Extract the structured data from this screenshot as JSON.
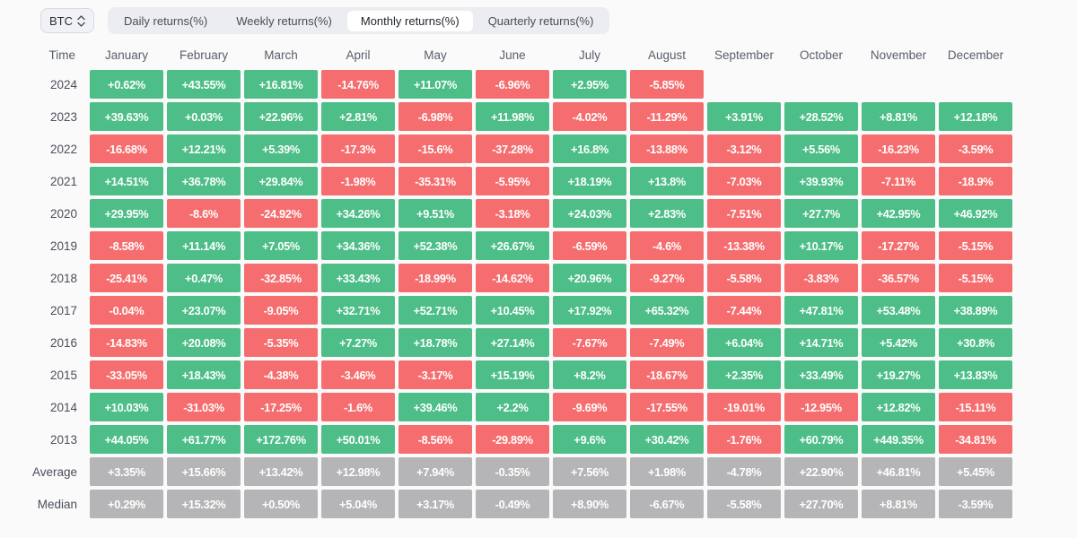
{
  "toolbar": {
    "symbol": "BTC",
    "tabs": [
      {
        "name": "tab-daily-returns",
        "label": "Daily returns(%)",
        "active": false
      },
      {
        "name": "tab-weekly-returns",
        "label": "Weekly returns(%)",
        "active": false
      },
      {
        "name": "tab-monthly-returns",
        "label": "Monthly returns(%)",
        "active": true
      },
      {
        "name": "tab-quarterly-returns",
        "label": "Quarterly returns(%)",
        "active": false
      }
    ]
  },
  "table": {
    "time_label": "Time",
    "columns": [
      "January",
      "February",
      "March",
      "April",
      "May",
      "June",
      "July",
      "August",
      "September",
      "October",
      "November",
      "December"
    ],
    "rows": [
      {
        "label": "2024",
        "cells": [
          [
            "+0.62%",
            "pos"
          ],
          [
            "+43.55%",
            "pos"
          ],
          [
            "+16.81%",
            "pos"
          ],
          [
            "-14.76%",
            "neg"
          ],
          [
            "+11.07%",
            "pos"
          ],
          [
            "-6.96%",
            "neg"
          ],
          [
            "+2.95%",
            "pos"
          ],
          [
            "-5.85%",
            "neg"
          ],
          null,
          null,
          null,
          null
        ]
      },
      {
        "label": "2023",
        "cells": [
          [
            "+39.63%",
            "pos"
          ],
          [
            "+0.03%",
            "pos"
          ],
          [
            "+22.96%",
            "pos"
          ],
          [
            "+2.81%",
            "pos"
          ],
          [
            "-6.98%",
            "neg"
          ],
          [
            "+11.98%",
            "pos"
          ],
          [
            "-4.02%",
            "neg"
          ],
          [
            "-11.29%",
            "neg"
          ],
          [
            "+3.91%",
            "pos"
          ],
          [
            "+28.52%",
            "pos"
          ],
          [
            "+8.81%",
            "pos"
          ],
          [
            "+12.18%",
            "pos"
          ]
        ]
      },
      {
        "label": "2022",
        "cells": [
          [
            "-16.68%",
            "neg"
          ],
          [
            "+12.21%",
            "pos"
          ],
          [
            "+5.39%",
            "pos"
          ],
          [
            "-17.3%",
            "neg"
          ],
          [
            "-15.6%",
            "neg"
          ],
          [
            "-37.28%",
            "neg"
          ],
          [
            "+16.8%",
            "pos"
          ],
          [
            "-13.88%",
            "neg"
          ],
          [
            "-3.12%",
            "neg"
          ],
          [
            "+5.56%",
            "pos"
          ],
          [
            "-16.23%",
            "neg"
          ],
          [
            "-3.59%",
            "neg"
          ]
        ]
      },
      {
        "label": "2021",
        "cells": [
          [
            "+14.51%",
            "pos"
          ],
          [
            "+36.78%",
            "pos"
          ],
          [
            "+29.84%",
            "pos"
          ],
          [
            "-1.98%",
            "neg"
          ],
          [
            "-35.31%",
            "neg"
          ],
          [
            "-5.95%",
            "neg"
          ],
          [
            "+18.19%",
            "pos"
          ],
          [
            "+13.8%",
            "pos"
          ],
          [
            "-7.03%",
            "neg"
          ],
          [
            "+39.93%",
            "pos"
          ],
          [
            "-7.11%",
            "neg"
          ],
          [
            "-18.9%",
            "neg"
          ]
        ]
      },
      {
        "label": "2020",
        "cells": [
          [
            "+29.95%",
            "pos"
          ],
          [
            "-8.6%",
            "neg"
          ],
          [
            "-24.92%",
            "neg"
          ],
          [
            "+34.26%",
            "pos"
          ],
          [
            "+9.51%",
            "pos"
          ],
          [
            "-3.18%",
            "neg"
          ],
          [
            "+24.03%",
            "pos"
          ],
          [
            "+2.83%",
            "pos"
          ],
          [
            "-7.51%",
            "neg"
          ],
          [
            "+27.7%",
            "pos"
          ],
          [
            "+42.95%",
            "pos"
          ],
          [
            "+46.92%",
            "pos"
          ]
        ]
      },
      {
        "label": "2019",
        "cells": [
          [
            "-8.58%",
            "neg"
          ],
          [
            "+11.14%",
            "pos"
          ],
          [
            "+7.05%",
            "pos"
          ],
          [
            "+34.36%",
            "pos"
          ],
          [
            "+52.38%",
            "pos"
          ],
          [
            "+26.67%",
            "pos"
          ],
          [
            "-6.59%",
            "neg"
          ],
          [
            "-4.6%",
            "neg"
          ],
          [
            "-13.38%",
            "neg"
          ],
          [
            "+10.17%",
            "pos"
          ],
          [
            "-17.27%",
            "neg"
          ],
          [
            "-5.15%",
            "neg"
          ]
        ]
      },
      {
        "label": "2018",
        "cells": [
          [
            "-25.41%",
            "neg"
          ],
          [
            "+0.47%",
            "pos"
          ],
          [
            "-32.85%",
            "neg"
          ],
          [
            "+33.43%",
            "pos"
          ],
          [
            "-18.99%",
            "neg"
          ],
          [
            "-14.62%",
            "neg"
          ],
          [
            "+20.96%",
            "pos"
          ],
          [
            "-9.27%",
            "neg"
          ],
          [
            "-5.58%",
            "neg"
          ],
          [
            "-3.83%",
            "neg"
          ],
          [
            "-36.57%",
            "neg"
          ],
          [
            "-5.15%",
            "neg"
          ]
        ]
      },
      {
        "label": "2017",
        "cells": [
          [
            "-0.04%",
            "neg"
          ],
          [
            "+23.07%",
            "pos"
          ],
          [
            "-9.05%",
            "neg"
          ],
          [
            "+32.71%",
            "pos"
          ],
          [
            "+52.71%",
            "pos"
          ],
          [
            "+10.45%",
            "pos"
          ],
          [
            "+17.92%",
            "pos"
          ],
          [
            "+65.32%",
            "pos"
          ],
          [
            "-7.44%",
            "neg"
          ],
          [
            "+47.81%",
            "pos"
          ],
          [
            "+53.48%",
            "pos"
          ],
          [
            "+38.89%",
            "pos"
          ]
        ]
      },
      {
        "label": "2016",
        "cells": [
          [
            "-14.83%",
            "neg"
          ],
          [
            "+20.08%",
            "pos"
          ],
          [
            "-5.35%",
            "neg"
          ],
          [
            "+7.27%",
            "pos"
          ],
          [
            "+18.78%",
            "pos"
          ],
          [
            "+27.14%",
            "pos"
          ],
          [
            "-7.67%",
            "neg"
          ],
          [
            "-7.49%",
            "neg"
          ],
          [
            "+6.04%",
            "pos"
          ],
          [
            "+14.71%",
            "pos"
          ],
          [
            "+5.42%",
            "pos"
          ],
          [
            "+30.8%",
            "pos"
          ]
        ]
      },
      {
        "label": "2015",
        "cells": [
          [
            "-33.05%",
            "neg"
          ],
          [
            "+18.43%",
            "pos"
          ],
          [
            "-4.38%",
            "neg"
          ],
          [
            "-3.46%",
            "neg"
          ],
          [
            "-3.17%",
            "neg"
          ],
          [
            "+15.19%",
            "pos"
          ],
          [
            "+8.2%",
            "pos"
          ],
          [
            "-18.67%",
            "neg"
          ],
          [
            "+2.35%",
            "pos"
          ],
          [
            "+33.49%",
            "pos"
          ],
          [
            "+19.27%",
            "pos"
          ],
          [
            "+13.83%",
            "pos"
          ]
        ]
      },
      {
        "label": "2014",
        "cells": [
          [
            "+10.03%",
            "pos"
          ],
          [
            "-31.03%",
            "neg"
          ],
          [
            "-17.25%",
            "neg"
          ],
          [
            "-1.6%",
            "neg"
          ],
          [
            "+39.46%",
            "pos"
          ],
          [
            "+2.2%",
            "pos"
          ],
          [
            "-9.69%",
            "neg"
          ],
          [
            "-17.55%",
            "neg"
          ],
          [
            "-19.01%",
            "neg"
          ],
          [
            "-12.95%",
            "neg"
          ],
          [
            "+12.82%",
            "pos"
          ],
          [
            "-15.11%",
            "neg"
          ]
        ]
      },
      {
        "label": "2013",
        "cells": [
          [
            "+44.05%",
            "pos"
          ],
          [
            "+61.77%",
            "pos"
          ],
          [
            "+172.76%",
            "pos"
          ],
          [
            "+50.01%",
            "pos"
          ],
          [
            "-8.56%",
            "neg"
          ],
          [
            "-29.89%",
            "neg"
          ],
          [
            "+9.6%",
            "pos"
          ],
          [
            "+30.42%",
            "pos"
          ],
          [
            "-1.76%",
            "neg"
          ],
          [
            "+60.79%",
            "pos"
          ],
          [
            "+449.35%",
            "pos"
          ],
          [
            "-34.81%",
            "neg"
          ]
        ]
      },
      {
        "label": "Average",
        "cells": [
          [
            "+3.35%",
            "sum"
          ],
          [
            "+15.66%",
            "sum"
          ],
          [
            "+13.42%",
            "sum"
          ],
          [
            "+12.98%",
            "sum"
          ],
          [
            "+7.94%",
            "sum"
          ],
          [
            "-0.35%",
            "sum"
          ],
          [
            "+7.56%",
            "sum"
          ],
          [
            "+1.98%",
            "sum"
          ],
          [
            "-4.78%",
            "sum"
          ],
          [
            "+22.90%",
            "sum"
          ],
          [
            "+46.81%",
            "sum"
          ],
          [
            "+5.45%",
            "sum"
          ]
        ]
      },
      {
        "label": "Median",
        "cells": [
          [
            "+0.29%",
            "sum"
          ],
          [
            "+15.32%",
            "sum"
          ],
          [
            "+0.50%",
            "sum"
          ],
          [
            "+5.04%",
            "sum"
          ],
          [
            "+3.17%",
            "sum"
          ],
          [
            "-0.49%",
            "sum"
          ],
          [
            "+8.90%",
            "sum"
          ],
          [
            "-6.67%",
            "sum"
          ],
          [
            "-5.58%",
            "sum"
          ],
          [
            "+27.70%",
            "sum"
          ],
          [
            "+8.81%",
            "sum"
          ],
          [
            "-3.59%",
            "sum"
          ]
        ]
      }
    ]
  },
  "colors": {
    "positive": "#4dbe87",
    "negative": "#f56d6e",
    "summary": "#b5b5b7",
    "page_bg": "#fafafb",
    "tabbar_bg": "#ecedf0",
    "active_tab_bg": "#ffffff"
  }
}
